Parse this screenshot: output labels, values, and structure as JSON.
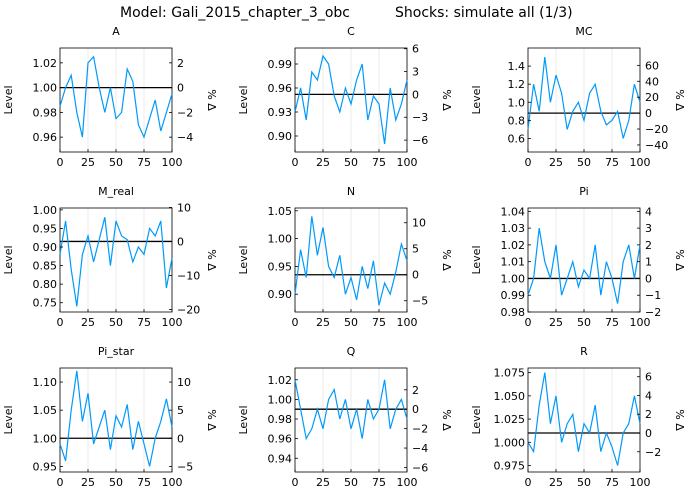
{
  "figure": {
    "title_model": "Model: Gali_2015_chapter_3_obc",
    "title_shocks": "Shocks: simulate all  (1/3)"
  },
  "colors": {
    "series": "#009AFA",
    "steady": "#000000",
    "grid": "#e6e6e6"
  },
  "chart_data": [
    {
      "type": "line",
      "title": "A",
      "ylabel": "Level",
      "ylabel_right": "% Δ",
      "steady_state": 1.0,
      "xlim": [
        0,
        100
      ],
      "xticks": [
        0,
        25,
        50,
        75,
        100
      ],
      "ylim": [
        0.948,
        1.032
      ],
      "yticks": [
        0.96,
        0.98,
        1.0,
        1.02
      ],
      "ytick_labels": [
        "0.96",
        "0.98",
        "1.00",
        "1.02"
      ],
      "rticks": [
        2,
        0,
        -2,
        -4
      ],
      "rtick_labels": [
        "2",
        "0",
        "−2",
        "−4"
      ],
      "x": [
        0,
        5,
        10,
        15,
        20,
        25,
        30,
        35,
        40,
        45,
        50,
        55,
        60,
        65,
        70,
        75,
        80,
        85,
        90,
        95,
        100
      ],
      "values": [
        0.985,
        1.0,
        1.01,
        0.98,
        0.96,
        1.02,
        1.025,
        1.0,
        0.98,
        1.0,
        0.975,
        0.98,
        1.015,
        1.005,
        0.97,
        0.96,
        0.975,
        0.99,
        0.965,
        0.98,
        0.995
      ]
    },
    {
      "type": "line",
      "title": "C",
      "ylabel": "Level",
      "ylabel_right": "% Δ",
      "steady_state": 0.952,
      "xlim": [
        0,
        100
      ],
      "xticks": [
        0,
        25,
        50,
        75,
        100
      ],
      "ylim": [
        0.88,
        1.01
      ],
      "yticks": [
        0.9,
        0.93,
        0.96,
        0.99
      ],
      "ytick_labels": [
        "0.90",
        "0.93",
        "0.96",
        "0.99"
      ],
      "rticks": [
        6,
        3,
        0,
        -3,
        -6
      ],
      "rtick_labels": [
        "6",
        "3",
        "0",
        "−3",
        "−6"
      ],
      "x": [
        0,
        5,
        10,
        15,
        20,
        25,
        30,
        35,
        40,
        45,
        50,
        55,
        60,
        65,
        70,
        75,
        80,
        85,
        90,
        95,
        100
      ],
      "values": [
        0.93,
        0.96,
        0.92,
        0.98,
        0.97,
        1.0,
        0.99,
        0.95,
        0.93,
        0.96,
        0.94,
        0.97,
        0.99,
        0.92,
        0.95,
        0.94,
        0.89,
        0.96,
        0.92,
        0.94,
        0.97
      ]
    },
    {
      "type": "line",
      "title": "MC",
      "ylabel": "Level",
      "ylabel_right": "% Δ",
      "steady_state": 0.88,
      "xlim": [
        0,
        100
      ],
      "xticks": [
        0,
        25,
        50,
        75,
        100
      ],
      "ylim": [
        0.45,
        1.6
      ],
      "yticks": [
        0.6,
        0.8,
        1.0,
        1.2,
        1.4
      ],
      "ytick_labels": [
        "0.6",
        "0.8",
        "1.0",
        "1.2",
        "1.4"
      ],
      "rticks": [
        60,
        40,
        20,
        0,
        -20,
        -40
      ],
      "rtick_labels": [
        "60",
        "40",
        "20",
        "0",
        "−20",
        "−40"
      ],
      "x": [
        0,
        5,
        10,
        15,
        20,
        25,
        30,
        35,
        40,
        45,
        50,
        55,
        60,
        65,
        70,
        75,
        80,
        85,
        90,
        95,
        100
      ],
      "values": [
        0.7,
        1.2,
        0.9,
        1.5,
        1.0,
        1.3,
        1.1,
        0.7,
        0.9,
        1.0,
        0.8,
        1.1,
        1.2,
        0.9,
        0.75,
        0.8,
        0.9,
        0.6,
        0.8,
        1.2,
        1.0
      ]
    },
    {
      "type": "line",
      "title": "M_real",
      "ylabel": "Level",
      "ylabel_right": "% Δ",
      "steady_state": 0.915,
      "xlim": [
        0,
        100
      ],
      "xticks": [
        0,
        25,
        50,
        75,
        100
      ],
      "ylim": [
        0.725,
        1.005
      ],
      "yticks": [
        0.75,
        0.8,
        0.85,
        0.9,
        0.95,
        1.0
      ],
      "ytick_labels": [
        "0.75",
        "0.80",
        "0.85",
        "0.90",
        "0.95",
        "1.00"
      ],
      "rticks": [
        10,
        0,
        -10,
        -20
      ],
      "rtick_labels": [
        "10",
        "0",
        "−10",
        "−20"
      ],
      "x": [
        0,
        5,
        10,
        15,
        20,
        25,
        30,
        35,
        40,
        45,
        50,
        55,
        60,
        65,
        70,
        75,
        80,
        85,
        90,
        95,
        100
      ],
      "values": [
        0.88,
        0.97,
        0.84,
        0.74,
        0.88,
        0.93,
        0.86,
        0.92,
        0.98,
        0.85,
        0.97,
        0.93,
        0.92,
        0.86,
        0.9,
        0.88,
        0.95,
        0.93,
        0.97,
        0.79,
        0.87
      ]
    },
    {
      "type": "line",
      "title": "N",
      "ylabel": "Level",
      "ylabel_right": "% Δ",
      "steady_state": 0.935,
      "xlim": [
        0,
        100
      ],
      "xticks": [
        0,
        25,
        50,
        75,
        100
      ],
      "ylim": [
        0.868,
        1.055
      ],
      "yticks": [
        0.9,
        0.95,
        1.0,
        1.05
      ],
      "ytick_labels": [
        "0.90",
        "0.95",
        "1.00",
        "1.05"
      ],
      "rticks": [
        10,
        5,
        0,
        -5
      ],
      "rtick_labels": [
        "10",
        "5",
        "0",
        "−5"
      ],
      "x": [
        0,
        5,
        10,
        15,
        20,
        25,
        30,
        35,
        40,
        45,
        50,
        55,
        60,
        65,
        70,
        75,
        80,
        85,
        90,
        95,
        100
      ],
      "values": [
        0.9,
        0.98,
        0.93,
        1.04,
        0.97,
        1.02,
        0.95,
        0.93,
        0.97,
        0.9,
        0.93,
        0.89,
        0.95,
        0.91,
        0.96,
        0.88,
        0.92,
        0.9,
        0.94,
        0.99,
        0.96
      ]
    },
    {
      "type": "line",
      "title": "Pi",
      "ylabel": "Level",
      "ylabel_right": "% Δ",
      "steady_state": 1.0,
      "xlim": [
        0,
        100
      ],
      "xticks": [
        0,
        25,
        50,
        75,
        100
      ],
      "ylim": [
        0.98,
        1.042
      ],
      "yticks": [
        0.98,
        0.99,
        1.0,
        1.01,
        1.02,
        1.03,
        1.04
      ],
      "ytick_labels": [
        "0.98",
        "0.99",
        "1.00",
        "1.01",
        "1.02",
        "1.03",
        "1.04"
      ],
      "rticks": [
        4,
        3,
        2,
        1,
        0,
        -1,
        -2
      ],
      "rtick_labels": [
        "4",
        "3",
        "2",
        "1",
        "0",
        "−1",
        "−2"
      ],
      "x": [
        0,
        5,
        10,
        15,
        20,
        25,
        30,
        35,
        40,
        45,
        50,
        55,
        60,
        65,
        70,
        75,
        80,
        85,
        90,
        95,
        100
      ],
      "values": [
        0.99,
        1.0,
        1.03,
        1.01,
        1.0,
        1.02,
        0.99,
        1.0,
        1.01,
        0.995,
        1.005,
        1.0,
        1.02,
        0.99,
        1.01,
        1.0,
        0.985,
        1.01,
        1.02,
        1.0,
        1.02
      ]
    },
    {
      "type": "line",
      "title": "Pi_star",
      "ylabel": "Level",
      "ylabel_right": "% Δ",
      "steady_state": 1.0,
      "xlim": [
        0,
        100
      ],
      "xticks": [
        0,
        25,
        50,
        75,
        100
      ],
      "ylim": [
        0.94,
        1.125
      ],
      "yticks": [
        0.95,
        1.0,
        1.05,
        1.1
      ],
      "ytick_labels": [
        "0.95",
        "1.00",
        "1.05",
        "1.10"
      ],
      "rticks": [
        10,
        5,
        0,
        -5
      ],
      "rtick_labels": [
        "10",
        "5",
        "0",
        "−5"
      ],
      "x": [
        0,
        5,
        10,
        15,
        20,
        25,
        30,
        35,
        40,
        45,
        50,
        55,
        60,
        65,
        70,
        75,
        80,
        85,
        90,
        95,
        100
      ],
      "values": [
        0.99,
        0.96,
        1.05,
        1.12,
        1.03,
        1.08,
        0.99,
        1.02,
        1.05,
        0.98,
        1.04,
        1.02,
        1.06,
        0.98,
        1.03,
        0.99,
        0.95,
        1.0,
        1.03,
        1.07,
        1.02
      ]
    },
    {
      "type": "line",
      "title": "Q",
      "ylabel": "Level",
      "ylabel_right": "% Δ",
      "steady_state": 0.99,
      "xlim": [
        0,
        100
      ],
      "xticks": [
        0,
        25,
        50,
        75,
        100
      ],
      "ylim": [
        0.926,
        1.032
      ],
      "yticks": [
        0.94,
        0.96,
        0.98,
        1.0,
        1.02
      ],
      "ytick_labels": [
        "0.94",
        "0.96",
        "0.98",
        "1.00",
        "1.02"
      ],
      "rticks": [
        2,
        0,
        -2,
        -4,
        -6
      ],
      "rtick_labels": [
        "2",
        "0",
        "−2",
        "−4",
        "−6"
      ],
      "x": [
        0,
        5,
        10,
        15,
        20,
        25,
        30,
        35,
        40,
        45,
        50,
        55,
        60,
        65,
        70,
        75,
        80,
        85,
        90,
        95,
        100
      ],
      "values": [
        1.02,
        0.99,
        0.96,
        0.97,
        0.99,
        0.97,
        1.0,
        1.01,
        0.98,
        1.0,
        0.97,
        0.99,
        0.96,
        1.0,
        0.98,
        0.99,
        1.02,
        0.97,
        0.99,
        1.0,
        0.98
      ]
    },
    {
      "type": "line",
      "title": "R",
      "ylabel": "Level",
      "ylabel_right": "% Δ",
      "steady_state": 1.01,
      "xlim": [
        0,
        100
      ],
      "xticks": [
        0,
        25,
        50,
        75,
        100
      ],
      "ylim": [
        0.968,
        1.08
      ],
      "yticks": [
        0.975,
        1.0,
        1.025,
        1.05,
        1.075
      ],
      "ytick_labels": [
        "0.975",
        "1.000",
        "1.025",
        "1.050",
        "1.075"
      ],
      "rticks": [
        6,
        4,
        2,
        0,
        -2
      ],
      "rtick_labels": [
        "6",
        "4",
        "2",
        "0",
        "−2"
      ],
      "x": [
        0,
        5,
        10,
        15,
        20,
        25,
        30,
        35,
        40,
        45,
        50,
        55,
        60,
        65,
        70,
        75,
        80,
        85,
        90,
        95,
        100
      ],
      "values": [
        1.0,
        0.99,
        1.04,
        1.075,
        1.02,
        1.05,
        1.0,
        1.02,
        1.03,
        0.99,
        1.02,
        1.01,
        1.04,
        0.99,
        1.01,
        0.995,
        0.975,
        1.01,
        1.02,
        1.05,
        1.02
      ]
    }
  ]
}
